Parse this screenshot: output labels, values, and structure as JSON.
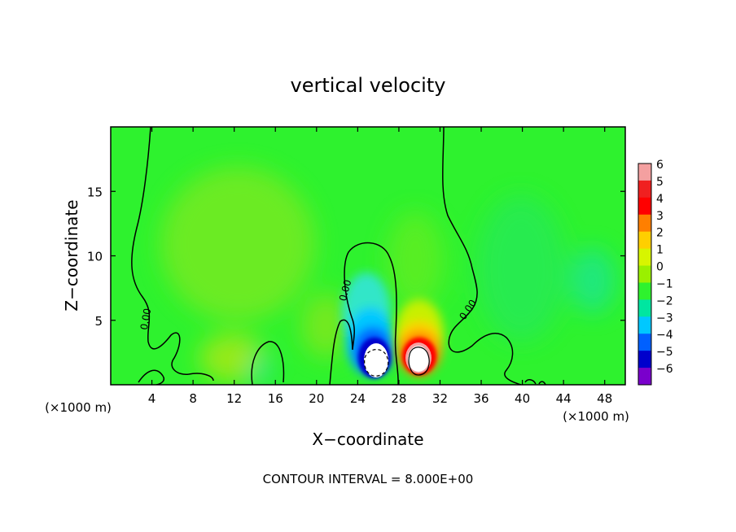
{
  "chart_data": {
    "type": "heatmap",
    "title": "vertical velocity",
    "xlabel": "X−coordinate",
    "ylabel": "Z−coordinate",
    "x_unit_left": "(×1000 m)",
    "x_unit_right": "(×1000 m)",
    "xlim": [
      0,
      50
    ],
    "ylim": [
      0,
      20
    ],
    "xticks": [
      4,
      8,
      12,
      16,
      20,
      24,
      28,
      32,
      36,
      40,
      44,
      48
    ],
    "yticks": [
      5,
      10,
      15
    ],
    "colorbar": {
      "levels": [
        6,
        5,
        4,
        3,
        2,
        1,
        0,
        -1,
        -2,
        -3,
        -4,
        -5,
        -6
      ],
      "tick_labels": [
        "6",
        "5",
        "4",
        "3",
        "2",
        "1",
        "0",
        "−1",
        "−2",
        "−3",
        "−4",
        "−5",
        "−6"
      ],
      "colors": [
        "#f4a0a0",
        "#f02020",
        "#ff0000",
        "#ff7f00",
        "#ffcf00",
        "#d7f500",
        "#9af000",
        "#2ef22e",
        "#00e6a0",
        "#00c8ff",
        "#0060ff",
        "#0000cc",
        "#7a00cc"
      ]
    },
    "features": [
      {
        "kind": "downdraft",
        "x_center": 25.5,
        "z_center": 2.5,
        "min_value": -6
      },
      {
        "kind": "updraft",
        "x_center": 30.0,
        "z_center": 2.3,
        "max_value": 6
      }
    ],
    "contour_labels": [
      "0.00",
      "0.00",
      "0.00"
    ],
    "contour_interval_text": "CONTOUR INTERVAL = 8.000E+00"
  }
}
